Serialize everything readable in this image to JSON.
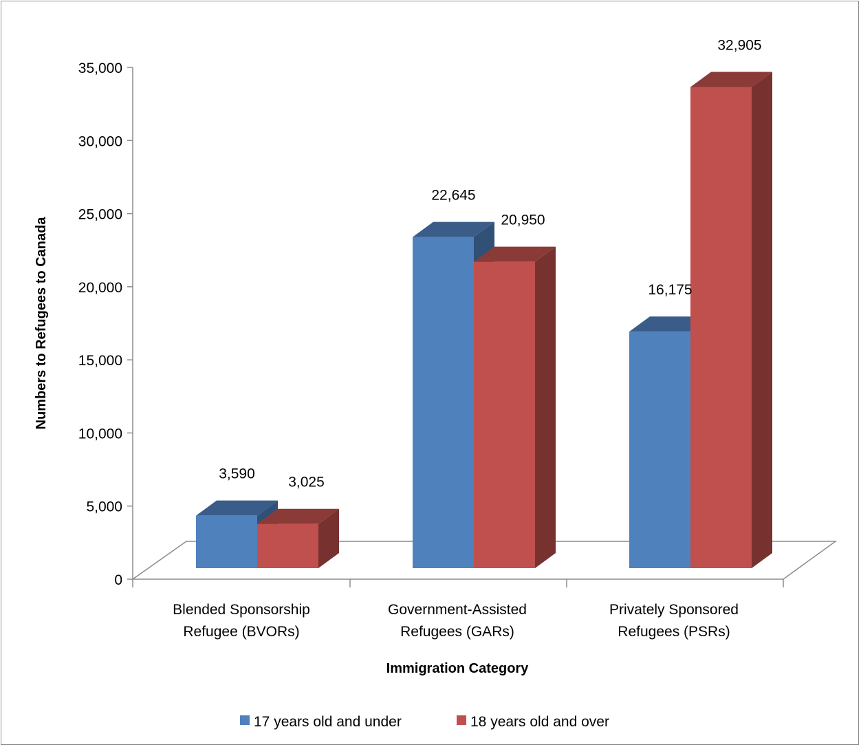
{
  "chart_data": {
    "type": "bar",
    "style": "3d-clustered-column",
    "title": "",
    "xlabel": "Immigration Category",
    "ylabel": "Numbers to Refugees to Canada",
    "ylim": [
      0,
      35000
    ],
    "yticks": [
      {
        "value": 0,
        "label": "0"
      },
      {
        "value": 5000,
        "label": "5,000"
      },
      {
        "value": 10000,
        "label": "10,000"
      },
      {
        "value": 15000,
        "label": "15,000"
      },
      {
        "value": 20000,
        "label": "20,000"
      },
      {
        "value": 25000,
        "label": "25,000"
      },
      {
        "value": 30000,
        "label": "30,000"
      },
      {
        "value": 35000,
        "label": "35,000"
      }
    ],
    "categories": [
      {
        "line1": "Blended Sponsorship",
        "line2": "Refugee (BVORs)"
      },
      {
        "line1": "Government-Assisted",
        "line2": "Refugees (GARs)"
      },
      {
        "line1": "Privately Sponsored",
        "line2": "Refugees (PSRs)"
      }
    ],
    "series": [
      {
        "name": "17 years old and under",
        "color": "#4f81bd",
        "values": [
          3590,
          22645,
          16175
        ],
        "labels": [
          "3,590",
          "22,645",
          "16,175"
        ]
      },
      {
        "name": "18 years old and over",
        "color": "#c0504d",
        "values": [
          3025,
          20950,
          32905
        ],
        "labels": [
          "3,025",
          "20,950",
          "32,905"
        ]
      }
    ],
    "legend_position": "bottom",
    "grid": false
  }
}
